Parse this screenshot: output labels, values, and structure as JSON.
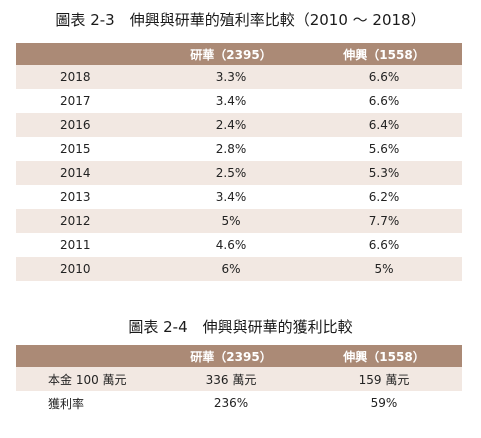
{
  "table1": {
    "title": "圖表 2-3　伸興與研華的殖利率比較（2010 ～ 2018）",
    "headers": [
      "",
      "研華（2395）",
      "伸興（1558）"
    ],
    "rows": [
      {
        "year": "2018",
        "a": "3.3%",
        "b": "6.6%"
      },
      {
        "year": "2017",
        "a": "3.4%",
        "b": "6.6%"
      },
      {
        "year": "2016",
        "a": "2.4%",
        "b": "6.4%"
      },
      {
        "year": "2015",
        "a": "2.8%",
        "b": "5.6%"
      },
      {
        "year": "2014",
        "a": "2.5%",
        "b": "5.3%"
      },
      {
        "year": "2013",
        "a": "3.4%",
        "b": "6.2%"
      },
      {
        "year": "2012",
        "a": "5%",
        "b": "7.7%"
      },
      {
        "year": "2011",
        "a": "4.6%",
        "b": "6.6%"
      },
      {
        "year": "2010",
        "a": "6%",
        "b": "5%"
      }
    ]
  },
  "table2": {
    "title": "圖表 2-4　伸興與研華的獲利比較",
    "headers": [
      "",
      "研華（2395）",
      "伸興（1558）"
    ],
    "rows": [
      {
        "label": "本金 100 萬元",
        "a": "336 萬元",
        "b": "159 萬元"
      },
      {
        "label": "獲利率",
        "a": "236%",
        "b": "59%"
      }
    ]
  },
  "colors": {
    "header_bg": "#ab8a76",
    "header_text": "#ffffff",
    "row_shade": "#f2e8e2",
    "row_plain": "#ffffff"
  }
}
